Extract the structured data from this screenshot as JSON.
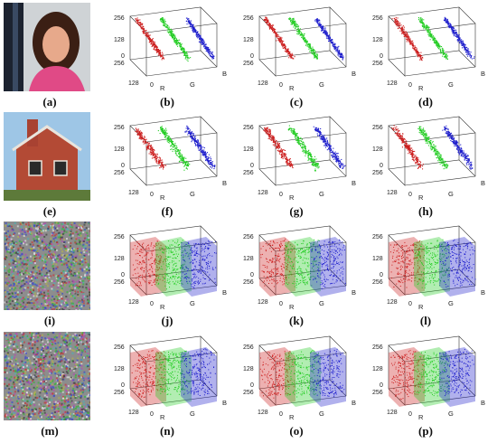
{
  "rows": [
    {
      "image": {
        "label": "(a)",
        "kind": "portrait"
      },
      "plots": [
        {
          "label": "(b)",
          "kind": "correlated"
        },
        {
          "label": "(c)",
          "kind": "correlated"
        },
        {
          "label": "(d)",
          "kind": "correlated"
        }
      ]
    },
    {
      "image": {
        "label": "(e)",
        "kind": "house"
      },
      "plots": [
        {
          "label": "(f)",
          "kind": "correlated"
        },
        {
          "label": "(g)",
          "kind": "correlated"
        },
        {
          "label": "(h)",
          "kind": "correlated"
        }
      ]
    },
    {
      "image": {
        "label": "(i)",
        "kind": "noise"
      },
      "plots": [
        {
          "label": "(j)",
          "kind": "uniform"
        },
        {
          "label": "(k)",
          "kind": "uniform"
        },
        {
          "label": "(l)",
          "kind": "uniform"
        }
      ]
    },
    {
      "image": {
        "label": "(m)",
        "kind": "noise"
      },
      "plots": [
        {
          "label": "(n)",
          "kind": "uniform"
        },
        {
          "label": "(o)",
          "kind": "uniform"
        },
        {
          "label": "(p)",
          "kind": "uniform"
        }
      ]
    }
  ],
  "axes": {
    "ticks_vertical": [
      "256",
      "128",
      "0"
    ],
    "tick_depth": "256",
    "tick_depth_mid": "128",
    "tick_zero": "0",
    "axis_r": "R",
    "axis_g": "G",
    "axis_b": "B"
  },
  "colors": {
    "red": "#cc1f1f",
    "green": "#22cc22",
    "blue": "#1f1fcc",
    "axis": "#333333"
  }
}
